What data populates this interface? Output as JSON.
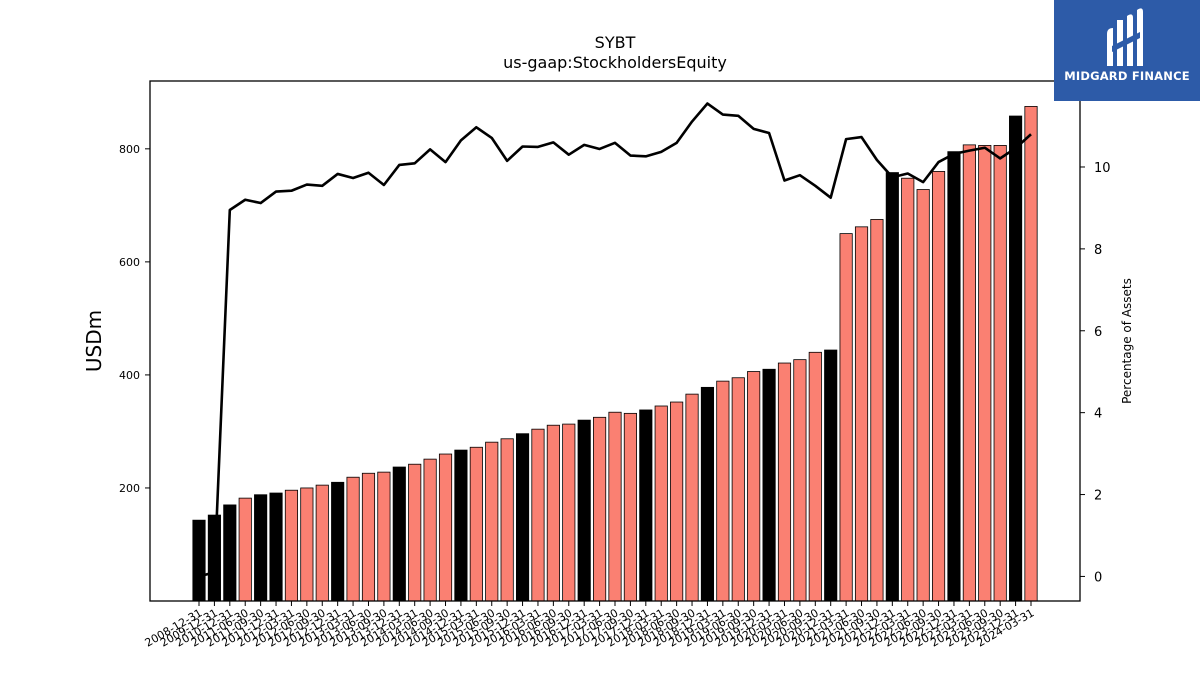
{
  "chart_data": {
    "type": "bar",
    "title": "SYBT",
    "subtitle": "us-gaap:StockholdersEquity",
    "ylabel": "USDm",
    "y2label": "Percentage of Assets",
    "ylim": [
      0,
      920
    ],
    "y2lim": [
      -0.6,
      12.1
    ],
    "yticks": [
      200,
      400,
      600,
      800
    ],
    "y2ticks": [
      0,
      2,
      4,
      6,
      8,
      10
    ],
    "colors": {
      "annual": "#000000",
      "quarterly": "#fa8072",
      "line": "#000000"
    },
    "categories": [
      "2008-12-31",
      "2009-12-31",
      "2010-12-31",
      "2011-06-30",
      "2011-09-30",
      "2011-12-31",
      "2012-03-31",
      "2012-06-30",
      "2012-09-30",
      "2012-12-31",
      "2013-03-31",
      "2013-06-30",
      "2013-09-30",
      "2013-12-31",
      "2014-03-31",
      "2014-06-30",
      "2014-09-30",
      "2014-12-31",
      "2015-03-31",
      "2015-06-30",
      "2015-09-30",
      "2015-12-31",
      "2016-03-31",
      "2016-06-30",
      "2016-09-30",
      "2016-12-31",
      "2017-03-31",
      "2017-06-30",
      "2017-09-30",
      "2017-12-31",
      "2018-03-31",
      "2018-06-30",
      "2018-09-30",
      "2018-12-31",
      "2019-03-31",
      "2019-06-30",
      "2019-09-30",
      "2019-12-31",
      "2020-03-31",
      "2020-06-30",
      "2020-09-30",
      "2020-12-31",
      "2021-03-31",
      "2021-06-30",
      "2021-09-30",
      "2021-12-31",
      "2022-03-31",
      "2022-06-30",
      "2022-09-30",
      "2022-12-31",
      "2023-03-31",
      "2023-06-30",
      "2023-09-30",
      "2023-12-31",
      "2024-03-31"
    ],
    "values": [
      143,
      152,
      170,
      182,
      188,
      191,
      196,
      200,
      205,
      210,
      219,
      226,
      228,
      237,
      242,
      251,
      260,
      267,
      272,
      281,
      287,
      296,
      304,
      311,
      313,
      320,
      325,
      334,
      332,
      338,
      345,
      352,
      366,
      378,
      389,
      395,
      406,
      410,
      421,
      427,
      440,
      444,
      650,
      662,
      675,
      758,
      748,
      728,
      760,
      795,
      807,
      806,
      806,
      858,
      875
    ],
    "annual_flags": [
      1,
      1,
      1,
      0,
      1,
      1,
      0,
      0,
      0,
      1,
      0,
      0,
      0,
      1,
      0,
      0,
      0,
      1,
      0,
      0,
      0,
      1,
      0,
      0,
      0,
      1,
      0,
      0,
      0,
      1,
      0,
      0,
      0,
      1,
      0,
      0,
      0,
      1,
      0,
      0,
      0,
      1,
      0,
      0,
      0,
      1,
      0,
      0,
      0,
      1,
      0,
      0,
      0,
      1,
      0
    ],
    "pct_assets": [
      0.0,
      0.1,
      8.95,
      9.2,
      9.12,
      9.4,
      9.42,
      9.57,
      9.54,
      9.83,
      9.73,
      9.86,
      9.56,
      10.05,
      10.09,
      10.43,
      10.12,
      10.65,
      10.97,
      10.71,
      10.15,
      10.5,
      10.49,
      10.6,
      10.3,
      10.54,
      10.44,
      10.59,
      10.28,
      10.26,
      10.37,
      10.59,
      11.11,
      11.55,
      11.28,
      11.25,
      10.93,
      10.83,
      9.67,
      9.8,
      9.54,
      9.25,
      10.68,
      10.73,
      10.17,
      9.75,
      9.84,
      9.63,
      10.12,
      10.32,
      10.4,
      10.47,
      10.21,
      10.46,
      10.8
    ]
  },
  "logo": {
    "text": "MIDGARD FINANCE"
  }
}
